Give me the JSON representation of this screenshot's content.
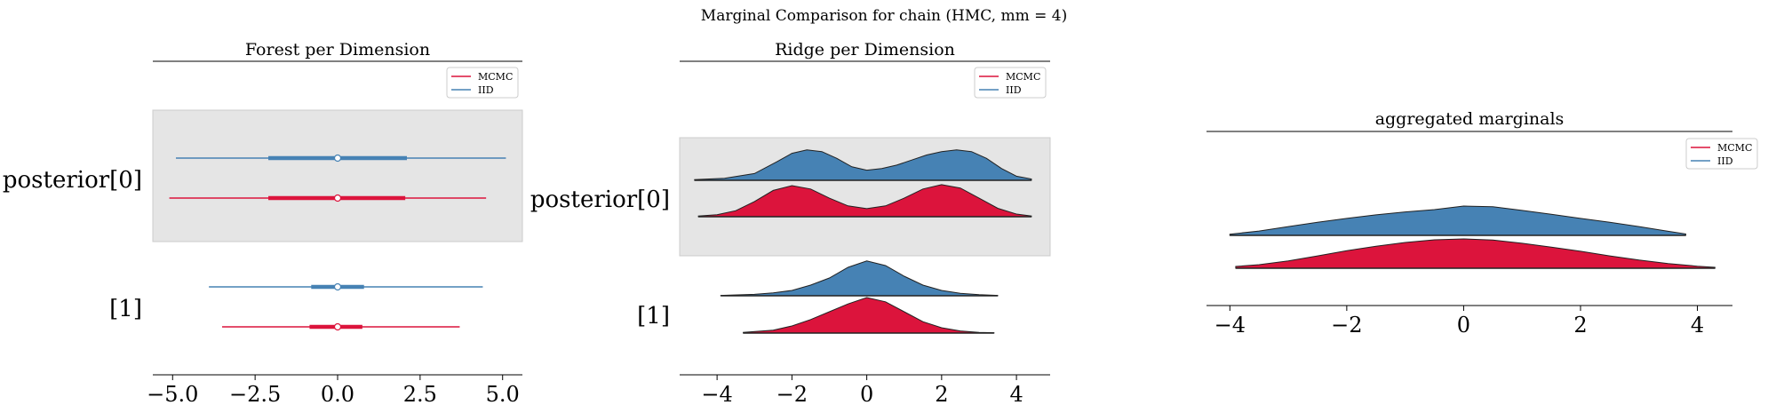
{
  "suptitle": "Marginal Comparison for chain (HMC, mm = 4)",
  "colors": {
    "mcmc": "#dc143c",
    "iid": "#4682b4",
    "shade": "#e5e5e5"
  },
  "chart_data": [
    {
      "type": "forest",
      "title": "Forest per Dimension",
      "legend": [
        "MCMC",
        "IID"
      ],
      "legend_placement": "top-right",
      "xticks": [
        "−5.0",
        "−2.5",
        "0.0",
        "2.5",
        "5.0"
      ],
      "xlim": [
        -5.6,
        5.6
      ],
      "ylabels": [
        "posterior[0]",
        "[1]"
      ],
      "rows": [
        {
          "iid": {
            "median": 0.0,
            "hdi_low": -4.9,
            "hdi_high": 5.1,
            "iqr_low": -2.1,
            "iqr_high": 2.1
          },
          "mcmc": {
            "median": 0.0,
            "hdi_low": -5.1,
            "hdi_high": 4.5,
            "iqr_low": -2.1,
            "iqr_high": 2.05
          }
        },
        {
          "iid": {
            "median": 0.0,
            "hdi_low": -3.9,
            "hdi_high": 4.4,
            "iqr_low": -0.8,
            "iqr_high": 0.8
          },
          "mcmc": {
            "median": 0.0,
            "hdi_low": -3.5,
            "hdi_high": 3.7,
            "iqr_low": -0.85,
            "iqr_high": 0.75
          }
        }
      ]
    },
    {
      "type": "ridge",
      "title": "Ridge per Dimension",
      "legend": [
        "MCMC",
        "IID"
      ],
      "legend_placement": "top-right",
      "xticks": [
        "−4",
        "−2",
        "0",
        "2",
        "4"
      ],
      "xlim": [
        -5.0,
        4.9
      ],
      "ylabels": [
        "posterior[0]",
        "[1]"
      ],
      "rows": [
        {
          "iid": {
            "x": [
              -4.6,
              -3.8,
              -3.0,
              -2.4,
              -2.0,
              -1.6,
              -1.2,
              -0.8,
              -0.4,
              0.0,
              0.4,
              0.8,
              1.2,
              1.6,
              2.0,
              2.4,
              2.8,
              3.2,
              3.6,
              4.0,
              4.4
            ],
            "y": [
              0.02,
              0.06,
              0.2,
              0.55,
              0.8,
              0.9,
              0.85,
              0.65,
              0.4,
              0.3,
              0.35,
              0.45,
              0.6,
              0.75,
              0.85,
              0.9,
              0.85,
              0.65,
              0.35,
              0.12,
              0.04
            ]
          },
          "mcmc": {
            "x": [
              -4.5,
              -4.0,
              -3.5,
              -3.0,
              -2.5,
              -2.0,
              -1.5,
              -1.0,
              -0.5,
              0.0,
              0.5,
              1.0,
              1.5,
              2.0,
              2.5,
              3.0,
              3.5,
              4.0,
              4.4
            ],
            "y": [
              0.02,
              0.06,
              0.18,
              0.45,
              0.78,
              0.92,
              0.82,
              0.55,
              0.32,
              0.24,
              0.32,
              0.55,
              0.82,
              0.95,
              0.85,
              0.55,
              0.25,
              0.08,
              0.02
            ]
          }
        },
        {
          "iid": {
            "x": [
              -3.9,
              -3.0,
              -2.5,
              -2.0,
              -1.5,
              -1.0,
              -0.5,
              0.0,
              0.5,
              1.0,
              1.5,
              2.0,
              2.5,
              3.0,
              3.5
            ],
            "y": [
              0.01,
              0.04,
              0.08,
              0.15,
              0.3,
              0.5,
              0.8,
              0.98,
              0.85,
              0.55,
              0.3,
              0.15,
              0.07,
              0.03,
              0.01
            ]
          },
          "mcmc": {
            "x": [
              -3.3,
              -2.5,
              -2.0,
              -1.5,
              -1.0,
              -0.5,
              0.0,
              0.5,
              1.0,
              1.5,
              2.0,
              2.5,
              3.0,
              3.4
            ],
            "y": [
              0.02,
              0.08,
              0.2,
              0.38,
              0.6,
              0.82,
              1.0,
              0.88,
              0.6,
              0.32,
              0.15,
              0.06,
              0.02,
              0.01
            ]
          }
        }
      ]
    },
    {
      "type": "ridge",
      "title": "aggregated marginals",
      "legend": [
        "MCMC",
        "IID"
      ],
      "legend_placement": "top-right",
      "xticks": [
        "−4",
        "−2",
        "0",
        "2",
        "4"
      ],
      "xlim": [
        -4.4,
        4.6
      ],
      "rows": [
        {
          "iid": {
            "x": [
              -4.0,
              -3.5,
              -3.0,
              -2.5,
              -2.0,
              -1.5,
              -1.0,
              -0.5,
              0.0,
              0.5,
              1.0,
              1.5,
              2.0,
              2.5,
              3.0,
              3.5,
              3.8
            ],
            "y": [
              0.04,
              0.15,
              0.3,
              0.45,
              0.58,
              0.7,
              0.8,
              0.88,
              1.0,
              0.98,
              0.85,
              0.72,
              0.58,
              0.45,
              0.3,
              0.14,
              0.05
            ]
          },
          "mcmc": {
            "x": [
              -3.9,
              -3.5,
              -3.0,
              -2.5,
              -2.0,
              -1.5,
              -1.0,
              -0.5,
              0.0,
              0.5,
              1.0,
              1.5,
              2.0,
              2.5,
              3.0,
              3.5,
              4.0,
              4.3
            ],
            "y": [
              0.06,
              0.12,
              0.25,
              0.42,
              0.6,
              0.75,
              0.88,
              0.97,
              1.0,
              0.96,
              0.85,
              0.72,
              0.58,
              0.42,
              0.28,
              0.16,
              0.07,
              0.03
            ]
          }
        }
      ]
    }
  ]
}
